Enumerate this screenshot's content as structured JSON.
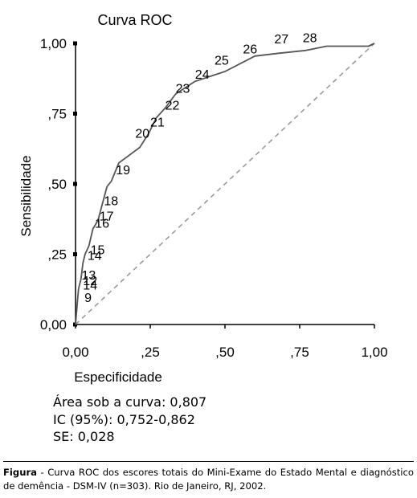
{
  "chart_data": {
    "type": "line",
    "title": "Curva ROC",
    "xlabel": "Especificidade",
    "ylabel": "Sensibilidade",
    "xlim": [
      0,
      1
    ],
    "ylim": [
      0,
      1
    ],
    "x_ticks": [
      "0,00",
      ",25",
      ",50",
      ",75",
      "1,00"
    ],
    "y_ticks": [
      "0,00",
      ",25",
      ",50",
      ",75",
      "1,00"
    ],
    "grid": false,
    "series": [
      {
        "values_x": [
          0.0,
          0.007,
          0.01,
          0.013,
          0.018,
          0.025,
          0.032,
          0.045,
          0.058,
          0.075,
          0.09,
          0.105,
          0.12,
          0.145,
          0.215,
          0.245,
          0.27,
          0.3,
          0.335,
          0.4,
          0.5,
          0.6,
          0.68,
          0.77,
          0.84,
          0.98,
          1.0
        ],
        "values_y": [
          0.0,
          0.09,
          0.125,
          0.14,
          0.16,
          0.22,
          0.25,
          0.28,
          0.34,
          0.37,
          0.43,
          0.49,
          0.51,
          0.575,
          0.63,
          0.68,
          0.735,
          0.77,
          0.82,
          0.865,
          0.9,
          0.955,
          0.965,
          0.975,
          0.99,
          0.99,
          1.0
        ]
      }
    ],
    "reference_line": {
      "style": "dashed",
      "color": "#9a9a9a",
      "from": [
        0,
        0
      ],
      "to": [
        1,
        1
      ]
    },
    "annotations": [
      {
        "text": "9",
        "x": 0.03,
        "y": 0.08
      },
      {
        "text": "14",
        "x": 0.025,
        "y": 0.125
      },
      {
        "text": "12",
        "x": 0.025,
        "y": 0.14
      },
      {
        "text": "13",
        "x": 0.02,
        "y": 0.16
      },
      {
        "text": "14",
        "x": 0.04,
        "y": 0.23
      },
      {
        "text": "15",
        "x": 0.05,
        "y": 0.25
      },
      {
        "text": "16",
        "x": 0.065,
        "y": 0.345
      },
      {
        "text": "17",
        "x": 0.08,
        "y": 0.37
      },
      {
        "text": "18",
        "x": 0.095,
        "y": 0.425
      },
      {
        "text": "19",
        "x": 0.135,
        "y": 0.535
      },
      {
        "text": "20",
        "x": 0.2,
        "y": 0.665
      },
      {
        "text": "21",
        "x": 0.25,
        "y": 0.705
      },
      {
        "text": "22",
        "x": 0.3,
        "y": 0.765
      },
      {
        "text": "23",
        "x": 0.335,
        "y": 0.825
      },
      {
        "text": "24",
        "x": 0.4,
        "y": 0.875
      },
      {
        "text": "25",
        "x": 0.465,
        "y": 0.925
      },
      {
        "text": "26",
        "x": 0.56,
        "y": 0.965
      },
      {
        "text": "27",
        "x": 0.665,
        "y": 1.0
      },
      {
        "text": "28",
        "x": 0.76,
        "y": 1.005
      }
    ],
    "line_color": "#555555"
  },
  "stats": {
    "area": "Área sob a curva: 0,807",
    "ci": "IC (95%): 0,752-0,862",
    "se": "SE: 0,028"
  },
  "caption": {
    "label": "Figura",
    "text": " - Curva ROC dos escores totais do Mini-Exame do Estado Mental e diagnóstico de demência - DSM-IV (n=303). Rio de Janeiro, RJ, 2002."
  }
}
